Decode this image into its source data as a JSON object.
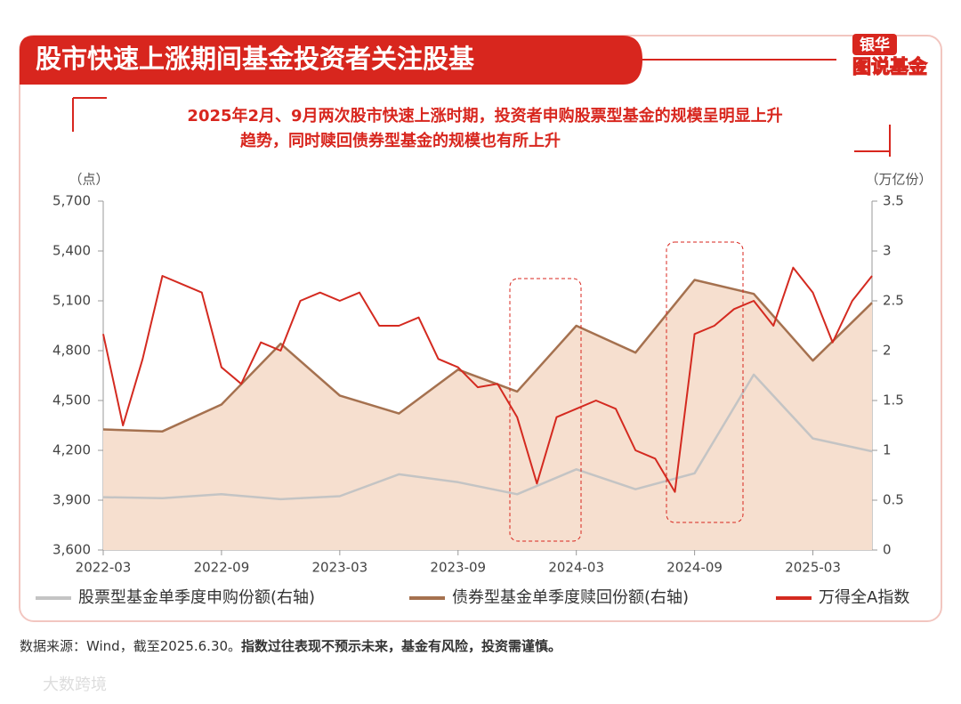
{
  "header": {
    "title": "股市快速上涨期间基金投资者关注股基",
    "logo_top": "银华",
    "logo_bottom": "图说基金"
  },
  "chart_data": {
    "type": "line",
    "subtitle": [
      "2025年2月、9月两次股市快速上涨时期，投资者申购股票型基金的规模呈明显上升",
      "趋势，同时赎回债券型基金的规模也有所上升"
    ],
    "y_label": "（点）",
    "y2_label": "（万亿份）",
    "xlim": [
      "2022-03",
      "2025-06"
    ],
    "xticks": [
      "2022-03",
      "2022-09",
      "2023-03",
      "2023-09",
      "2024-03",
      "2024-09",
      "2025-03"
    ],
    "ylim": [
      3600,
      5700
    ],
    "yticks": [
      {
        "value": 3600,
        "label": "3,600"
      },
      {
        "value": 3900,
        "label": "3,900"
      },
      {
        "value": 4200,
        "label": "4,200"
      },
      {
        "value": 4500,
        "label": "4,500"
      },
      {
        "value": 4800,
        "label": "4,800"
      },
      {
        "value": 5100,
        "label": "5,100"
      },
      {
        "value": 5400,
        "label": "5,400"
      },
      {
        "value": 5700,
        "label": "5,700"
      }
    ],
    "y2lim": [
      0,
      3.5
    ],
    "y2ticks": [
      0,
      0.5,
      1,
      1.5,
      2,
      2.5,
      3,
      3.5
    ],
    "series": [
      {
        "name": "股票型基金单季度申购份额(右轴)",
        "color": "#c4c4c4",
        "fill": "#e4e2e2",
        "axis": "y2",
        "x": [
          "2022-03",
          "2022-06",
          "2022-09",
          "2022-12",
          "2023-03",
          "2023-06",
          "2023-09",
          "2023-12",
          "2024-03",
          "2024-06",
          "2024-09",
          "2024-12",
          "2025-03",
          "2025-06"
        ],
        "values": [
          0.53,
          0.52,
          0.56,
          0.51,
          0.54,
          0.76,
          0.68,
          0.56,
          0.81,
          0.61,
          0.77,
          1.76,
          1.12,
          0.99
        ]
      },
      {
        "name": "债券型基金单季度赎回份额(右轴)",
        "color": "#a5714f",
        "fill": "#f6dfcf",
        "axis": "y2",
        "x": [
          "2022-03",
          "2022-06",
          "2022-09",
          "2022-12",
          "2023-03",
          "2023-06",
          "2023-09",
          "2023-12",
          "2024-03",
          "2024-06",
          "2024-09",
          "2024-12",
          "2025-03",
          "2025-06"
        ],
        "values": [
          1.21,
          1.19,
          1.46,
          2.07,
          1.55,
          1.37,
          1.81,
          1.59,
          2.25,
          1.98,
          2.71,
          2.57,
          1.9,
          2.48
        ]
      },
      {
        "name": "万得全A指数",
        "color": "#d42a20",
        "axis": "y",
        "x": [
          "2022-03",
          "2022-04",
          "2022-05",
          "2022-06",
          "2022-07",
          "2022-08",
          "2022-09",
          "2022-10",
          "2022-11",
          "2022-12",
          "2023-01",
          "2023-02",
          "2023-03",
          "2023-04",
          "2023-05",
          "2023-06",
          "2023-07",
          "2023-08",
          "2023-09",
          "2023-10",
          "2023-11",
          "2023-12",
          "2024-01",
          "2024-02",
          "2024-03",
          "2024-04",
          "2024-05",
          "2024-06",
          "2024-07",
          "2024-08",
          "2024-09",
          "2024-10",
          "2024-11",
          "2024-12",
          "2025-01",
          "2025-02",
          "2025-03",
          "2025-04",
          "2025-05",
          "2025-06"
        ],
        "values": [
          4900,
          4350,
          4750,
          5250,
          5200,
          5150,
          4700,
          4600,
          4850,
          4800,
          5100,
          5150,
          5100,
          5150,
          4950,
          4950,
          5000,
          4750,
          4700,
          4580,
          4600,
          4400,
          4000,
          4400,
          4450,
          4500,
          4450,
          4200,
          4150,
          3950,
          4900,
          4950,
          5050,
          5100,
          4950,
          5300,
          5150,
          4850,
          5100,
          5250
        ]
      }
    ]
  },
  "footer": {
    "source": "数据来源：Wind，截至2025.6.30。",
    "disclaimer": "指数过往表现不预示未来，基金有风险，投资需谨慎。",
    "watermark": "大数跨境"
  }
}
